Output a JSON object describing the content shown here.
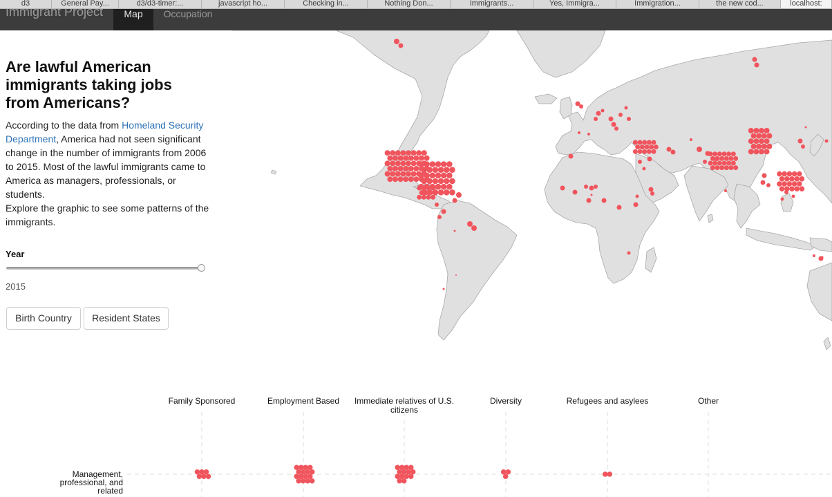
{
  "browser": {
    "tabs": [
      {
        "label": "d3",
        "active": false
      },
      {
        "label": "General Pay...",
        "active": false
      },
      {
        "label": "d3/d3-timer:...",
        "active": false
      },
      {
        "label": "javascript ho...",
        "active": false
      },
      {
        "label": "Checking in...",
        "active": false
      },
      {
        "label": "Nothing Don...",
        "active": false
      },
      {
        "label": "Immigrants...",
        "active": false
      },
      {
        "label": "Yes, Immigra...",
        "active": false
      },
      {
        "label": "Immigration...",
        "active": false
      },
      {
        "label": "the new cod...",
        "active": false
      },
      {
        "label": "localhost:",
        "active": true
      }
    ]
  },
  "navbar": {
    "brand": "Immigrant Project",
    "items": [
      {
        "label": "Map",
        "active": true
      },
      {
        "label": "Occupation",
        "active": false
      }
    ]
  },
  "panel": {
    "title": "Are lawful American immigrants taking jobs from Americans?",
    "intro_before_link": "According to the data from ",
    "link_text": "Homeland Security Department",
    "intro_after_link": ", America had not seen significant change in the number of immigrants from 2006 to 2015. Most of the lawful immigrants came to America as managers, professionals, or students.",
    "intro_explore": "Explore the graphic to see some patterns of the immigrants.",
    "year_label": "Year",
    "year_value": "2015",
    "slider_fraction": 1.0,
    "buttons": {
      "birth_country": "Birth Country",
      "resident_states": "Resident States"
    }
  },
  "colors": {
    "dot": "#f0555d",
    "land": "#e0e0e0",
    "land_stroke": "#a8a8a8",
    "link": "#2f73b6",
    "navbar": "#3c3c3c"
  },
  "matrix": {
    "columns": [
      "Family Sponsored",
      "Employment Based",
      "Immediate relatives of U.S. citizens",
      "Diversity",
      "Refugees and asylees",
      "Other"
    ],
    "rows": [
      "Management, professional, and related"
    ],
    "cluster_dot_counts": [
      6,
      16,
      14,
      3,
      2,
      0
    ]
  }
}
